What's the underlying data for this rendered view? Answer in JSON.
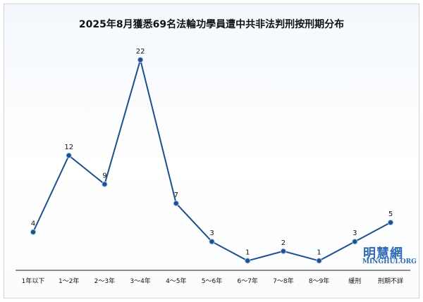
{
  "chart_data": {
    "type": "line",
    "title": "2025年8月獲悉69名法輪功學員遭中共非法判刑按刑期分布",
    "categories": [
      "1年以下",
      "1～2年",
      "2～3年",
      "3～4年",
      "4～5年",
      "5～6年",
      "6～7年",
      "7～8年",
      "8～9年",
      "緩刑",
      "刑期不詳"
    ],
    "values": [
      4,
      12,
      9,
      22,
      7,
      3,
      1,
      2,
      1,
      3,
      5
    ],
    "ylim": [
      0,
      23
    ],
    "grid": false,
    "legend": "none",
    "line_color": "#1d4f8c",
    "marker_color": "#1d4f8c"
  },
  "watermark": {
    "name": "明慧網",
    "url": "MINGHUI.ORG"
  }
}
